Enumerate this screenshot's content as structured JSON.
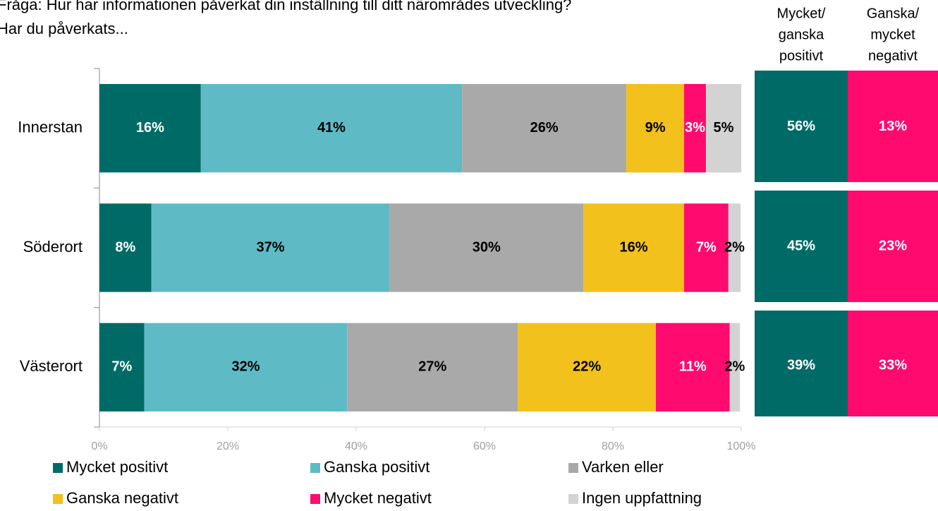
{
  "chart_data": {
    "type": "stacked_barh",
    "title": [
      "Fråga: Hur har informationen påverkat din inställning till ditt närområdes utveckling?",
      "Har du påverkats..."
    ],
    "categories": [
      "Innerstan",
      "Söderort",
      "Västerort"
    ],
    "series": [
      {
        "name": "Mycket positivt",
        "color": "#006b66",
        "label_color": "#ffffff",
        "values": [
          15.8,
          8.1,
          7.0
        ],
        "value_labels": [
          "16%",
          "8%",
          "7%"
        ]
      },
      {
        "name": "Ganska positivt",
        "color": "#5ebbc6",
        "label_color": "#000000",
        "values": [
          40.7,
          37.1,
          31.6
        ],
        "value_labels": [
          "41%",
          "37%",
          "32%"
        ]
      },
      {
        "name": "Varken eller",
        "color": "#a9a9a9",
        "label_color": "#000000",
        "values": [
          25.6,
          30.2,
          26.6
        ],
        "value_labels": [
          "26%",
          "30%",
          "27%"
        ]
      },
      {
        "name": "Ganska negativt",
        "color": "#f2c11c",
        "label_color": "#000000",
        "values": [
          9.0,
          15.7,
          21.5
        ],
        "value_labels": [
          "9%",
          "16%",
          "22%"
        ]
      },
      {
        "name": "Mycket negativt",
        "color": "#ff0a6e",
        "label_color": "#ffffff",
        "values": [
          3.4,
          6.9,
          11.5
        ],
        "value_labels": [
          "3%",
          "7%",
          "11%"
        ]
      },
      {
        "name": "Ingen uppfattning",
        "color": "#d3d3d3",
        "label_color": "#000000",
        "values": [
          5.5,
          1.9,
          1.6
        ],
        "value_labels": [
          "5%",
          "2%",
          "2%"
        ]
      }
    ],
    "xlim": [
      0,
      100
    ],
    "xticks": [
      {
        "value": 0,
        "label": "0%"
      },
      {
        "value": 20,
        "label": "20%"
      },
      {
        "value": 40,
        "label": "40%"
      },
      {
        "value": 60,
        "label": "60%"
      },
      {
        "value": 80,
        "label": "80%"
      },
      {
        "value": 100,
        "label": "100%"
      }
    ],
    "legend": "bottom",
    "summary": {
      "columns": [
        {
          "header": [
            "Mycket/",
            "ganska",
            "positivt"
          ],
          "color": "#006b66",
          "values": [
            "56%",
            "45%",
            "39%"
          ]
        },
        {
          "header": [
            "Ganska/",
            "mycket",
            "negativt"
          ],
          "color": "#ff0a6e",
          "values": [
            "13%",
            "23%",
            "33%"
          ]
        }
      ]
    }
  }
}
